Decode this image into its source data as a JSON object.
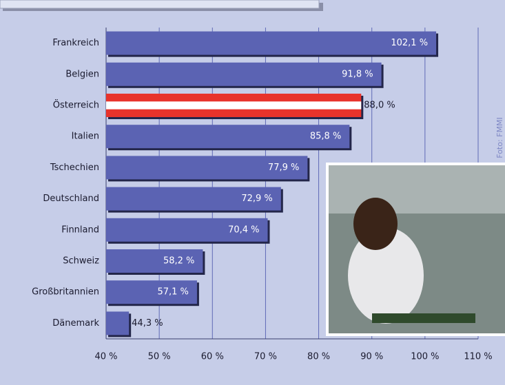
{
  "chart_data": {
    "type": "bar",
    "orientation": "horizontal",
    "categories": [
      "Frankreich",
      "Belgien",
      "Österreich",
      "Italien",
      "Tschechien",
      "Deutschland",
      "Finnland",
      "Schweiz",
      "Großbritannien",
      "Dänemark"
    ],
    "values": [
      102.1,
      91.8,
      88.0,
      85.8,
      77.9,
      72.9,
      70.4,
      58.2,
      57.1,
      44.3
    ],
    "value_labels": [
      "102,1 %",
      "91,8 %",
      "88,0 %",
      "85,8 %",
      "77,9 %",
      "72,9 %",
      "70,4 %",
      "58,2 %",
      "57,1 %",
      "44,3 %"
    ],
    "color": "#5b63b3",
    "highlight": {
      "index": 2,
      "colors": [
        "#e8332b",
        "#ffffff"
      ]
    },
    "xlim": [
      40,
      110
    ],
    "xticks": [
      {
        "value": 40,
        "label": "40 %"
      },
      {
        "value": 50,
        "label": "50 %"
      },
      {
        "value": 60,
        "label": "60 %"
      },
      {
        "value": 70,
        "label": "70 %"
      },
      {
        "value": 80,
        "label": "80 %"
      },
      {
        "value": 90,
        "label": "90 %"
      },
      {
        "value": 100,
        "label": "100 %"
      },
      {
        "value": 110,
        "label": "110 %"
      }
    ],
    "grid": true,
    "photo_credit": "Foto: FMMI"
  }
}
